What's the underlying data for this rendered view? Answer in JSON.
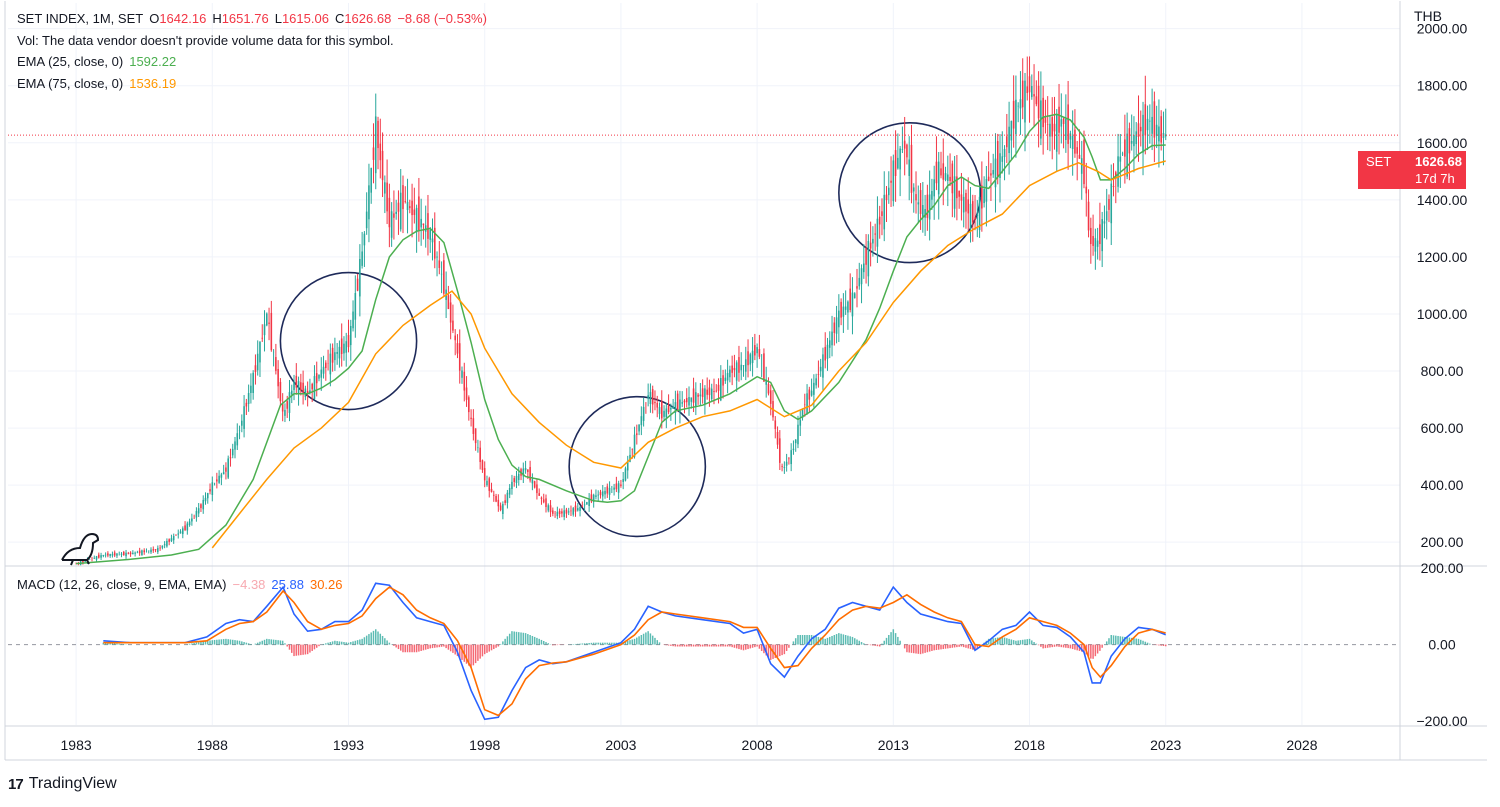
{
  "header": {
    "symbol_line": {
      "symbol": "SET INDEX, 1M, SET",
      "open_label": "O",
      "open": "1642.16",
      "high_label": "H",
      "high": "1651.76",
      "low_label": "L",
      "low": "1615.06",
      "close_label": "C",
      "close": "1626.68",
      "change": "−8.68 (−0.53%)"
    },
    "vol_notice": "Vol: The data vendor doesn't provide volume data for this symbol.",
    "ema25": {
      "label": "EMA (25, close, 0)",
      "value": "1592.22"
    },
    "ema75": {
      "label": "EMA (75, close, 0)",
      "value": "1536.19"
    }
  },
  "currency": "THB",
  "price_tag": {
    "symbol": "SET",
    "value": "1626.68",
    "countdown": "17d 7h"
  },
  "macd_legend": {
    "label": "MACD (12, 26, close, 9, EMA, EMA)",
    "hist": "−4.38",
    "macd": "25.88",
    "signal": "30.26"
  },
  "footer": {
    "brand": "TradingView"
  },
  "colors": {
    "up": "#26a69a",
    "down": "#f23645",
    "ema25": "#4caf50",
    "ema75": "#ff9800",
    "macd": "#2962ff",
    "signal": "#ff6d00",
    "annotation": "#1e2a5a"
  },
  "chart_data": [
    {
      "type": "line",
      "title": "SET INDEX, 1M, SET",
      "xlabel": "",
      "ylabel": "THB",
      "x_ticks": [
        "1983",
        "1988",
        "1993",
        "1998",
        "2003",
        "2008",
        "2013",
        "2018",
        "2023",
        "2028"
      ],
      "y_ticks": [
        "200.00",
        "400.00",
        "600.00",
        "800.00",
        "1000.00",
        "1200.00",
        "1400.00",
        "1600.00",
        "1800.00",
        "2000.00"
      ],
      "xlim": [
        1980.5,
        2031.6
      ],
      "ylim": [
        120,
        2090
      ],
      "series": [
        {
          "name": "SET INDEX",
          "x": [
            1983.0,
            1984.0,
            1985.0,
            1986.0,
            1987.0,
            1987.6,
            1988.0,
            1988.5,
            1989.0,
            1989.5,
            1990.0,
            1990.6,
            1991.0,
            1991.5,
            1992.0,
            1992.5,
            1993.0,
            1993.5,
            1994.0,
            1994.5,
            1995.0,
            1995.5,
            1996.0,
            1996.5,
            1997.0,
            1997.5,
            1998.0,
            1998.6,
            1999.0,
            1999.5,
            2000.0,
            2000.5,
            2001.0,
            2001.5,
            2002.0,
            2002.5,
            2003.0,
            2003.5,
            2004.0,
            2004.5,
            2005.0,
            2005.5,
            2006.0,
            2006.5,
            2007.0,
            2007.5,
            2008.0,
            2008.5,
            2008.9,
            2009.3,
            2009.7,
            2010.0,
            2010.5,
            2011.0,
            2011.5,
            2012.0,
            2012.5,
            2013.0,
            2013.4,
            2013.8,
            2014.2,
            2014.6,
            2015.0,
            2015.5,
            2016.0,
            2016.5,
            2017.0,
            2017.5,
            2018.0,
            2018.4,
            2018.8,
            2019.2,
            2019.6,
            2020.0,
            2020.2,
            2020.5,
            2020.9,
            2021.3,
            2021.7,
            2022.0,
            2022.4,
            2022.8,
            2023.0
          ],
          "values": [
            125,
            155,
            160,
            175,
            250,
            330,
            400,
            455,
            600,
            780,
            1000,
            640,
            760,
            720,
            800,
            860,
            900,
            1220,
            1650,
            1320,
            1400,
            1340,
            1280,
            1100,
            860,
            620,
            420,
            310,
            410,
            460,
            360,
            300,
            305,
            320,
            360,
            380,
            400,
            560,
            720,
            650,
            680,
            700,
            720,
            730,
            800,
            820,
            880,
            690,
            450,
            520,
            680,
            730,
            860,
            1000,
            1050,
            1200,
            1330,
            1500,
            1600,
            1400,
            1350,
            1500,
            1480,
            1400,
            1330,
            1480,
            1550,
            1720,
            1800,
            1700,
            1640,
            1680,
            1600,
            1500,
            1250,
            1250,
            1380,
            1550,
            1600,
            1640,
            1680,
            1630,
            1626.68
          ]
        },
        {
          "name": "EMA (25, close, 0)",
          "x": [
            1983.0,
            1985.0,
            1986.5,
            1987.5,
            1988.5,
            1989.5,
            1990.5,
            1991.0,
            1991.5,
            1992.0,
            1992.5,
            1993.0,
            1993.5,
            1994.0,
            1994.5,
            1995.0,
            1995.5,
            1996.0,
            1996.5,
            1997.0,
            1997.5,
            1998.0,
            1998.5,
            1999.0,
            1999.5,
            2000.0,
            2001.0,
            2002.0,
            2002.5,
            2003.0,
            2003.5,
            2004.0,
            2004.5,
            2005.0,
            2006.0,
            2007.0,
            2007.5,
            2008.0,
            2008.5,
            2009.0,
            2009.5,
            2010.0,
            2011.0,
            2012.0,
            2012.5,
            2013.0,
            2013.5,
            2014.0,
            2014.5,
            2015.0,
            2015.5,
            2016.0,
            2016.5,
            2017.0,
            2017.5,
            2018.0,
            2018.5,
            2019.0,
            2019.5,
            2020.0,
            2020.3,
            2020.6,
            2021.0,
            2021.5,
            2022.0,
            2022.5,
            2023.0
          ],
          "values": [
            125,
            140,
            155,
            175,
            260,
            420,
            680,
            720,
            720,
            740,
            770,
            810,
            870,
            1050,
            1200,
            1260,
            1290,
            1300,
            1250,
            1080,
            900,
            700,
            560,
            470,
            430,
            420,
            380,
            345,
            340,
            345,
            380,
            500,
            620,
            660,
            680,
            720,
            750,
            780,
            760,
            660,
            630,
            660,
            760,
            910,
            1020,
            1150,
            1270,
            1330,
            1380,
            1450,
            1480,
            1450,
            1440,
            1500,
            1560,
            1640,
            1690,
            1700,
            1680,
            1620,
            1550,
            1470,
            1470,
            1510,
            1560,
            1590,
            1592.22
          ]
        },
        {
          "name": "EMA (75, close, 0)",
          "x": [
            1988.0,
            1989.0,
            1990.0,
            1991.0,
            1992.0,
            1993.0,
            1994.0,
            1995.0,
            1996.0,
            1996.8,
            1997.5,
            1998.0,
            1999.0,
            2000.0,
            2001.0,
            2002.0,
            2003.0,
            2004.0,
            2005.0,
            2006.0,
            2007.0,
            2008.0,
            2009.0,
            2010.0,
            2011.0,
            2012.0,
            2013.0,
            2014.0,
            2015.0,
            2016.0,
            2017.0,
            2018.0,
            2019.0,
            2019.8,
            2020.5,
            2021.0,
            2022.0,
            2023.0
          ],
          "values": [
            180,
            300,
            420,
            530,
            600,
            690,
            860,
            960,
            1030,
            1080,
            1000,
            880,
            720,
            620,
            540,
            480,
            460,
            550,
            600,
            640,
            660,
            700,
            640,
            680,
            800,
            900,
            1040,
            1150,
            1240,
            1300,
            1350,
            1450,
            1500,
            1530,
            1500,
            1470,
            1510,
            1536.19
          ]
        }
      ]
    },
    {
      "type": "line",
      "title": "MACD (12, 26, close, 9, EMA, EMA)",
      "y_ticks": [
        "−200.00",
        "0.00",
        "200.00"
      ],
      "xlim": [
        1980.5,
        2031.6
      ],
      "ylim": [
        -210,
        200
      ],
      "x": [
        1984.0,
        1985.0,
        1986.0,
        1987.0,
        1987.8,
        1988.5,
        1989.0,
        1989.5,
        1990.0,
        1990.6,
        1991.0,
        1991.5,
        1992.0,
        1992.5,
        1993.0,
        1993.5,
        1994.0,
        1994.5,
        1995.0,
        1995.5,
        1996.0,
        1996.5,
        1997.0,
        1997.5,
        1998.0,
        1998.5,
        1999.0,
        1999.5,
        2000.0,
        2000.5,
        2001.0,
        2002.0,
        2003.0,
        2003.5,
        2004.0,
        2004.5,
        2005.0,
        2006.0,
        2007.0,
        2007.5,
        2008.0,
        2008.5,
        2009.0,
        2009.5,
        2010.0,
        2010.5,
        2011.0,
        2011.5,
        2012.0,
        2012.5,
        2013.0,
        2013.5,
        2014.0,
        2014.5,
        2015.0,
        2015.5,
        2016.0,
        2016.5,
        2017.0,
        2017.5,
        2018.0,
        2018.5,
        2019.0,
        2019.5,
        2020.0,
        2020.3,
        2020.6,
        2021.0,
        2021.5,
        2022.0,
        2022.5,
        2023.0
      ],
      "series": [
        {
          "name": "MACD",
          "values": [
            10,
            5,
            5,
            5,
            20,
            55,
            65,
            60,
            100,
            150,
            80,
            35,
            40,
            60,
            60,
            90,
            160,
            155,
            110,
            70,
            60,
            50,
            -20,
            -120,
            -195,
            -190,
            -120,
            -60,
            -40,
            -50,
            -45,
            -20,
            5,
            40,
            100,
            85,
            75,
            65,
            55,
            30,
            40,
            -50,
            -85,
            -30,
            15,
            40,
            95,
            110,
            100,
            90,
            150,
            110,
            80,
            70,
            60,
            55,
            -15,
            10,
            40,
            50,
            85,
            50,
            45,
            20,
            -20,
            -100,
            -100,
            -30,
            15,
            45,
            40,
            25.88
          ]
        },
        {
          "name": "Signal",
          "values": [
            5,
            5,
            5,
            5,
            10,
            40,
            55,
            60,
            85,
            140,
            110,
            60,
            40,
            50,
            55,
            75,
            120,
            150,
            130,
            90,
            70,
            55,
            10,
            -60,
            -170,
            -185,
            -155,
            -90,
            -55,
            -48,
            -45,
            -25,
            0,
            25,
            65,
            85,
            80,
            70,
            60,
            45,
            45,
            -10,
            -60,
            -55,
            -10,
            25,
            65,
            90,
            100,
            95,
            110,
            130,
            105,
            85,
            70,
            60,
            0,
            -5,
            20,
            40,
            70,
            60,
            50,
            30,
            0,
            -60,
            -85,
            -55,
            -5,
            30,
            40,
            30.26
          ]
        },
        {
          "name": "Histogram",
          "values": [
            5,
            0,
            0,
            0,
            10,
            15,
            10,
            0,
            15,
            10,
            -30,
            -25,
            0,
            10,
            5,
            15,
            40,
            5,
            -20,
            -20,
            -10,
            -5,
            -30,
            -60,
            -25,
            -5,
            35,
            30,
            15,
            -2,
            0,
            5,
            5,
            15,
            35,
            0,
            -5,
            -5,
            -5,
            -15,
            -5,
            -40,
            -25,
            25,
            25,
            15,
            30,
            20,
            0,
            -5,
            40,
            -20,
            -25,
            -15,
            -10,
            -5,
            -15,
            15,
            20,
            10,
            15,
            -10,
            -5,
            -10,
            -20,
            -40,
            -15,
            25,
            20,
            15,
            0,
            -4.38
          ]
        }
      ]
    }
  ]
}
